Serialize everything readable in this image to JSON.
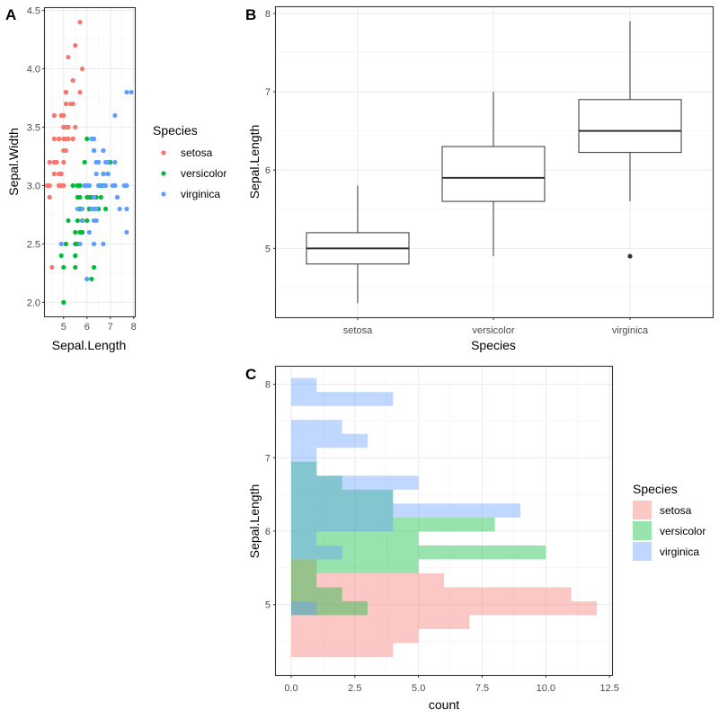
{
  "chart_data": [
    {
      "panel": "A",
      "type": "scatter",
      "title": "",
      "xlabel": "Sepal.Length",
      "ylabel": "Sepal.Width",
      "xlim": [
        4.2,
        8.05
      ],
      "ylim": [
        1.88,
        4.52
      ],
      "xticks": [
        5,
        6,
        7,
        8
      ],
      "xtick_labels": [
        "5",
        "6",
        "7",
        "8"
      ],
      "yticks": [
        2.0,
        2.5,
        3.0,
        3.5,
        4.0,
        4.5
      ],
      "ytick_labels": [
        "2.0",
        "2.5",
        "3.0",
        "3.5",
        "4.0",
        "4.5"
      ],
      "grid": true,
      "legend": {
        "title": "Species",
        "position": "right",
        "entries": [
          "setosa",
          "versicolor",
          "virginica"
        ]
      },
      "colors": {
        "setosa": "#F8766D",
        "versicolor": "#00BA38",
        "virginica": "#619CFF"
      },
      "series": [
        {
          "name": "setosa",
          "points": [
            [
              5.1,
              3.5
            ],
            [
              4.9,
              3.0
            ],
            [
              4.7,
              3.2
            ],
            [
              4.6,
              3.1
            ],
            [
              5.0,
              3.6
            ],
            [
              5.4,
              3.9
            ],
            [
              4.6,
              3.4
            ],
            [
              5.0,
              3.4
            ],
            [
              4.4,
              2.9
            ],
            [
              4.9,
              3.1
            ],
            [
              5.4,
              3.7
            ],
            [
              4.8,
              3.4
            ],
            [
              4.8,
              3.0
            ],
            [
              4.3,
              3.0
            ],
            [
              5.8,
              4.0
            ],
            [
              5.7,
              4.4
            ],
            [
              5.4,
              3.9
            ],
            [
              5.1,
              3.5
            ],
            [
              5.7,
              3.8
            ],
            [
              5.1,
              3.8
            ],
            [
              5.4,
              3.4
            ],
            [
              5.1,
              3.7
            ],
            [
              4.6,
              3.6
            ],
            [
              5.1,
              3.3
            ],
            [
              4.8,
              3.4
            ],
            [
              5.0,
              3.0
            ],
            [
              5.0,
              3.4
            ],
            [
              5.2,
              3.5
            ],
            [
              5.2,
              3.4
            ],
            [
              4.7,
              3.2
            ],
            [
              4.8,
              3.1
            ],
            [
              5.4,
              3.4
            ],
            [
              5.2,
              4.1
            ],
            [
              5.5,
              4.2
            ],
            [
              4.9,
              3.1
            ],
            [
              5.0,
              3.2
            ],
            [
              5.5,
              3.5
            ],
            [
              4.9,
              3.6
            ],
            [
              4.4,
              3.0
            ],
            [
              5.1,
              3.4
            ],
            [
              5.0,
              3.5
            ],
            [
              4.5,
              2.3
            ],
            [
              4.4,
              3.2
            ],
            [
              5.0,
              3.5
            ],
            [
              5.1,
              3.8
            ],
            [
              4.8,
              3.0
            ],
            [
              5.1,
              3.8
            ],
            [
              4.6,
              3.2
            ],
            [
              5.3,
              3.7
            ],
            [
              5.0,
              3.3
            ]
          ]
        },
        {
          "name": "versicolor",
          "points": [
            [
              7.0,
              3.2
            ],
            [
              6.4,
              3.2
            ],
            [
              6.9,
              3.1
            ],
            [
              5.5,
              2.3
            ],
            [
              6.5,
              2.8
            ],
            [
              5.7,
              2.8
            ],
            [
              6.3,
              3.3
            ],
            [
              4.9,
              2.4
            ],
            [
              6.6,
              2.9
            ],
            [
              5.2,
              2.7
            ],
            [
              5.0,
              2.0
            ],
            [
              5.9,
              3.0
            ],
            [
              6.0,
              2.2
            ],
            [
              6.1,
              2.9
            ],
            [
              5.6,
              2.9
            ],
            [
              6.7,
              3.1
            ],
            [
              5.6,
              3.0
            ],
            [
              5.8,
              2.7
            ],
            [
              6.2,
              2.2
            ],
            [
              5.6,
              2.5
            ],
            [
              5.9,
              3.2
            ],
            [
              6.1,
              2.8
            ],
            [
              6.3,
              2.5
            ],
            [
              6.1,
              2.8
            ],
            [
              6.4,
              2.9
            ],
            [
              6.6,
              3.0
            ],
            [
              6.8,
              2.8
            ],
            [
              6.7,
              3.0
            ],
            [
              6.0,
              2.9
            ],
            [
              5.7,
              2.6
            ],
            [
              5.5,
              2.4
            ],
            [
              5.5,
              2.4
            ],
            [
              5.8,
              2.7
            ],
            [
              6.0,
              2.7
            ],
            [
              5.4,
              3.0
            ],
            [
              6.0,
              3.4
            ],
            [
              6.7,
              3.1
            ],
            [
              6.3,
              2.3
            ],
            [
              5.6,
              3.0
            ],
            [
              5.5,
              2.5
            ],
            [
              5.5,
              2.6
            ],
            [
              6.1,
              3.0
            ],
            [
              5.8,
              2.6
            ],
            [
              5.0,
              2.3
            ],
            [
              5.6,
              2.7
            ],
            [
              5.7,
              3.0
            ],
            [
              5.7,
              2.9
            ],
            [
              6.2,
              2.9
            ],
            [
              5.1,
              2.5
            ],
            [
              5.7,
              2.8
            ]
          ]
        },
        {
          "name": "virginica",
          "points": [
            [
              6.3,
              3.3
            ],
            [
              5.8,
              2.7
            ],
            [
              7.1,
              3.0
            ],
            [
              6.3,
              2.9
            ],
            [
              6.5,
              3.0
            ],
            [
              7.6,
              3.0
            ],
            [
              4.9,
              2.5
            ],
            [
              7.3,
              2.9
            ],
            [
              6.7,
              2.5
            ],
            [
              7.2,
              3.6
            ],
            [
              6.5,
              3.2
            ],
            [
              6.4,
              2.7
            ],
            [
              6.8,
              3.0
            ],
            [
              5.7,
              2.5
            ],
            [
              5.8,
              2.8
            ],
            [
              6.4,
              3.2
            ],
            [
              6.5,
              3.0
            ],
            [
              7.7,
              3.8
            ],
            [
              7.7,
              2.6
            ],
            [
              6.0,
              2.2
            ],
            [
              6.9,
              3.2
            ],
            [
              5.6,
              2.8
            ],
            [
              7.7,
              2.8
            ],
            [
              6.3,
              2.7
            ],
            [
              6.7,
              3.3
            ],
            [
              7.2,
              3.2
            ],
            [
              6.2,
              2.8
            ],
            [
              6.1,
              3.0
            ],
            [
              6.4,
              2.8
            ],
            [
              7.2,
              3.0
            ],
            [
              7.4,
              2.8
            ],
            [
              7.9,
              3.8
            ],
            [
              6.4,
              2.8
            ],
            [
              6.3,
              2.8
            ],
            [
              6.1,
              2.6
            ],
            [
              7.7,
              3.0
            ],
            [
              6.3,
              3.4
            ],
            [
              6.4,
              3.1
            ],
            [
              6.0,
              3.0
            ],
            [
              6.9,
              3.1
            ],
            [
              6.7,
              3.1
            ],
            [
              6.9,
              3.1
            ],
            [
              5.8,
              2.7
            ],
            [
              6.8,
              3.2
            ],
            [
              6.7,
              3.3
            ],
            [
              6.7,
              3.0
            ],
            [
              6.3,
              2.5
            ],
            [
              6.5,
              3.0
            ],
            [
              6.2,
              3.4
            ],
            [
              5.9,
              3.0
            ]
          ]
        }
      ]
    },
    {
      "panel": "B",
      "type": "boxplot",
      "title": "",
      "xlabel": "Species",
      "ylabel": "Sepal.Length",
      "ylim": [
        4.12,
        8.08
      ],
      "yticks": [
        5,
        6,
        7,
        8
      ],
      "ytick_labels": [
        "5",
        "6",
        "7",
        "8"
      ],
      "categories": [
        "setosa",
        "versicolor",
        "virginica"
      ],
      "grid": true,
      "boxes": [
        {
          "name": "setosa",
          "min": 4.3,
          "q1": 4.8,
          "median": 5.0,
          "q3": 5.2,
          "max": 5.8,
          "outliers": []
        },
        {
          "name": "versicolor",
          "min": 4.9,
          "q1": 5.6,
          "median": 5.9,
          "q3": 6.3,
          "max": 7.0,
          "outliers": []
        },
        {
          "name": "virginica",
          "min": 5.6,
          "q1": 6.225,
          "median": 6.5,
          "q3": 6.9,
          "max": 7.9,
          "outliers": [
            4.9
          ]
        }
      ]
    },
    {
      "panel": "C",
      "type": "bar",
      "orientation": "horizontal",
      "histogram": true,
      "position": "identity",
      "title": "",
      "xlabel": "count",
      "ylabel": "Sepal.Length",
      "xlim": [
        -0.6,
        12.6
      ],
      "ylim": [
        4.04,
        8.24
      ],
      "xticks": [
        0,
        2.5,
        5,
        7.5,
        10,
        12.5
      ],
      "xtick_labels": [
        "0.0",
        "2.5",
        "5.0",
        "7.5",
        "10.0",
        "12.5"
      ],
      "yticks": [
        5,
        6,
        7,
        8
      ],
      "ytick_labels": [
        "5",
        "6",
        "7",
        "8"
      ],
      "bin_centers": [
        4.38,
        4.57,
        4.76,
        4.95,
        5.14,
        5.33,
        5.52,
        5.71,
        5.9,
        6.09,
        6.28,
        6.47,
        6.66,
        6.85,
        7.04,
        7.23,
        7.42,
        7.61,
        7.8,
        7.99
      ],
      "bin_width": 0.19,
      "alpha": 0.4,
      "grid": true,
      "legend": {
        "title": "Species",
        "position": "right",
        "entries": [
          "setosa",
          "versicolor",
          "virginica"
        ]
      },
      "colors": {
        "setosa": "#F8766D",
        "versicolor": "#00BA38",
        "virginica": "#619CFF"
      },
      "series": [
        {
          "name": "setosa",
          "values": [
            4,
            5,
            7,
            12,
            11,
            6,
            1,
            0,
            0,
            0,
            0,
            0,
            0,
            0,
            0,
            0,
            0,
            0,
            0,
            0
          ]
        },
        {
          "name": "versicolor",
          "values": [
            0,
            0,
            0,
            3,
            2,
            1,
            5,
            10,
            5,
            8,
            4,
            4,
            2,
            1,
            0,
            0,
            0,
            0,
            0,
            0
          ]
        },
        {
          "name": "virginica",
          "values": [
            0,
            0,
            0,
            1,
            0,
            0,
            0,
            2,
            1,
            4,
            9,
            4,
            5,
            1,
            1,
            3,
            2,
            0,
            4,
            1
          ]
        }
      ]
    }
  ],
  "panel_tags": [
    "A",
    "B",
    "C"
  ]
}
